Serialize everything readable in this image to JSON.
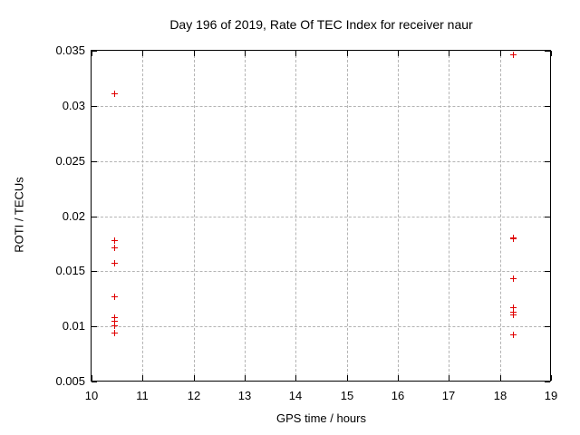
{
  "chart_data": {
    "type": "scatter",
    "title": "Day 196 of 2019, Rate Of TEC Index for receiver naur",
    "xlabel": "GPS time / hours",
    "ylabel": "ROTI / TECUs",
    "xlim": [
      10,
      19
    ],
    "ylim": [
      0.005,
      0.035
    ],
    "xticks": [
      10,
      11,
      12,
      13,
      14,
      15,
      16,
      17,
      18,
      19
    ],
    "xtick_labels": [
      "10",
      "11",
      "12",
      "13",
      "14",
      "15",
      "16",
      "17",
      "18",
      "19"
    ],
    "yticks": [
      0.005,
      0.01,
      0.015,
      0.02,
      0.025,
      0.03,
      0.035
    ],
    "ytick_labels": [
      "0.005",
      "0.01",
      "0.015",
      "0.02",
      "0.025",
      "0.03",
      "0.035"
    ],
    "grid": true,
    "legend": "none",
    "marker": "plus",
    "series": [
      {
        "name": "ROTI",
        "points": [
          [
            10.45,
            0.0311
          ],
          [
            10.45,
            0.0178
          ],
          [
            10.45,
            0.0172
          ],
          [
            10.45,
            0.0158
          ],
          [
            10.45,
            0.0127
          ],
          [
            10.45,
            0.0108
          ],
          [
            10.45,
            0.0105
          ],
          [
            10.45,
            0.0101
          ],
          [
            10.45,
            0.0094
          ],
          [
            18.25,
            0.0347
          ],
          [
            18.25,
            0.0181
          ],
          [
            18.25,
            0.018
          ],
          [
            18.25,
            0.0144
          ],
          [
            18.25,
            0.0117
          ],
          [
            18.25,
            0.0113
          ],
          [
            18.25,
            0.0111
          ],
          [
            18.25,
            0.0093
          ]
        ]
      }
    ],
    "colors": {
      "marker": "#e00000",
      "grid": "#b4b4b4",
      "frame": "#000000",
      "background": "#ffffff",
      "text": "#000000"
    }
  }
}
